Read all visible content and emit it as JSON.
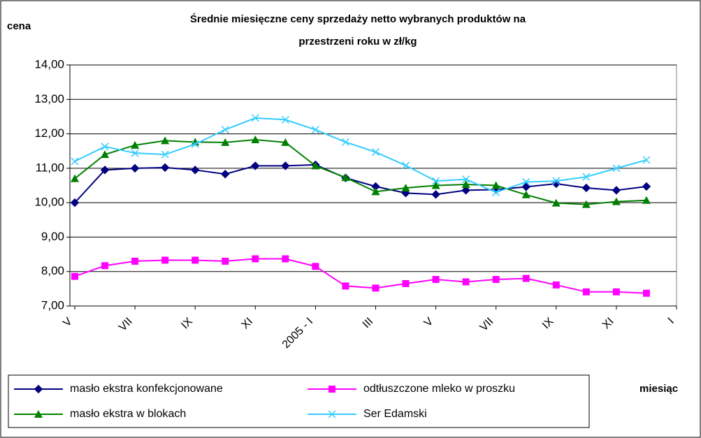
{
  "chart_data": {
    "type": "line",
    "title": [
      "Średnie miesięczne ceny sprzedaży netto  wybranych produktów na",
      "przestrzeni roku w zł/kg"
    ],
    "ylabel": "cena",
    "xlabel": "miesiąc",
    "categories": [
      "V",
      null,
      "VII",
      null,
      "IX",
      null,
      "XI",
      null,
      "2005 - I",
      null,
      "III",
      null,
      "V",
      null,
      "VII",
      null,
      "IX",
      null,
      "XI",
      null,
      "I"
    ],
    "series": [
      {
        "name": "masło ekstra konfekcjonowane",
        "color": "#000080",
        "marker": "diamond",
        "values": [
          10.0,
          10.95,
          11.0,
          11.02,
          10.95,
          10.83,
          11.07,
          11.07,
          11.1,
          10.72,
          10.47,
          10.28,
          10.24,
          10.36,
          10.38,
          10.46,
          10.55,
          10.43,
          10.36,
          10.47,
          null
        ]
      },
      {
        "name": "odtłuszczone mleko w proszku",
        "color": "#ff00ff",
        "marker": "square",
        "values": [
          7.86,
          8.17,
          8.3,
          8.33,
          8.33,
          8.3,
          8.37,
          8.37,
          8.15,
          7.58,
          7.52,
          7.65,
          7.77,
          7.7,
          7.77,
          7.8,
          7.61,
          7.41,
          7.41,
          7.37,
          null
        ]
      },
      {
        "name": "masło ekstra w blokach",
        "color": "#008000",
        "marker": "triangle",
        "values": [
          10.7,
          11.4,
          11.67,
          11.8,
          11.76,
          11.75,
          11.83,
          11.75,
          11.07,
          10.73,
          10.32,
          10.43,
          10.5,
          10.53,
          10.5,
          10.23,
          9.99,
          9.95,
          10.03,
          10.07,
          null
        ]
      },
      {
        "name": "Ser Edamski",
        "color": "#33ccff",
        "marker": "x",
        "values": [
          11.2,
          11.63,
          11.44,
          11.4,
          11.7,
          12.12,
          12.46,
          12.41,
          12.12,
          11.76,
          11.47,
          11.08,
          10.63,
          10.68,
          10.3,
          10.6,
          10.63,
          10.75,
          11.0,
          11.24,
          null
        ]
      }
    ],
    "ylim": [
      7,
      14
    ],
    "yticks": [
      {
        "value": 7,
        "label": "7,00"
      },
      {
        "value": 8,
        "label": "8,00"
      },
      {
        "value": 9,
        "label": "9,00"
      },
      {
        "value": 10,
        "label": "10,00"
      },
      {
        "value": 11,
        "label": "11,00"
      },
      {
        "value": 12,
        "label": "12,00"
      },
      {
        "value": 13,
        "label": "13,00"
      },
      {
        "value": 14,
        "label": "14,00"
      }
    ],
    "grid": true,
    "legend": "bottom"
  }
}
